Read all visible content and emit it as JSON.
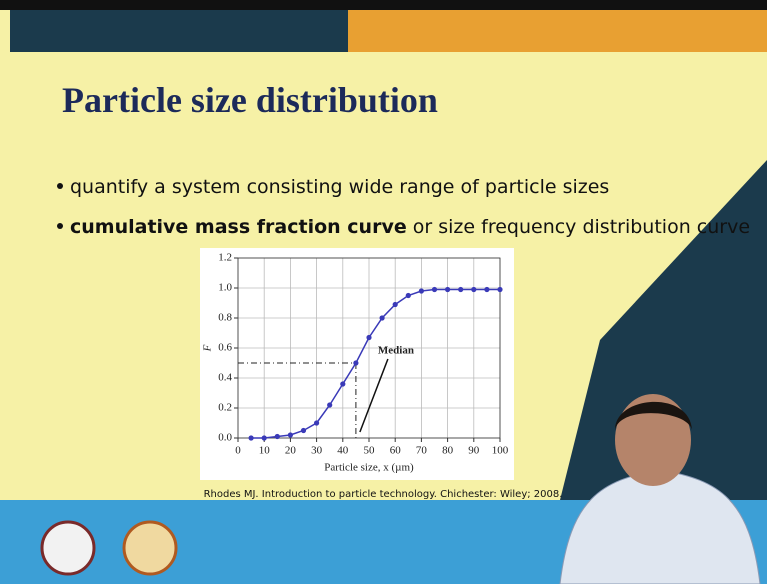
{
  "slide": {
    "title": "Particle size distribution",
    "bullets": [
      "quantify a system consisting wide range of particle sizes",
      {
        "bold": "cumulative mass fraction curve",
        "rest": " or size frequency distribution curve"
      }
    ],
    "citation": "Rhodes MJ. Introduction to particle technology. Chichester: Wiley; 2008."
  },
  "chart_data": {
    "type": "line",
    "xlabel": "Particle size, x (µm)",
    "ylabel": "F",
    "x": [
      5,
      10,
      15,
      20,
      25,
      30,
      35,
      40,
      45,
      50,
      55,
      60,
      65,
      70,
      75,
      80,
      85,
      90,
      95,
      100
    ],
    "values": [
      0.0,
      0.0,
      0.01,
      0.02,
      0.05,
      0.1,
      0.22,
      0.36,
      0.5,
      0.67,
      0.8,
      0.89,
      0.95,
      0.98,
      0.99,
      0.99,
      0.99,
      0.99,
      0.99,
      0.99
    ],
    "color": "#3a3ab8",
    "xlim": [
      0,
      100
    ],
    "ylim": [
      0,
      1.2
    ],
    "xticks": [
      0,
      10,
      20,
      30,
      40,
      50,
      60,
      70,
      80,
      90,
      100
    ],
    "yticks": [
      {
        "value": 0,
        "label": "0.0"
      },
      0.2,
      0.4,
      0.6,
      0.8,
      {
        "value": 1,
        "label": "1.0"
      },
      1.2
    ],
    "grid": true,
    "median": {
      "x": 45,
      "y": 0.5,
      "label": "Median"
    }
  }
}
